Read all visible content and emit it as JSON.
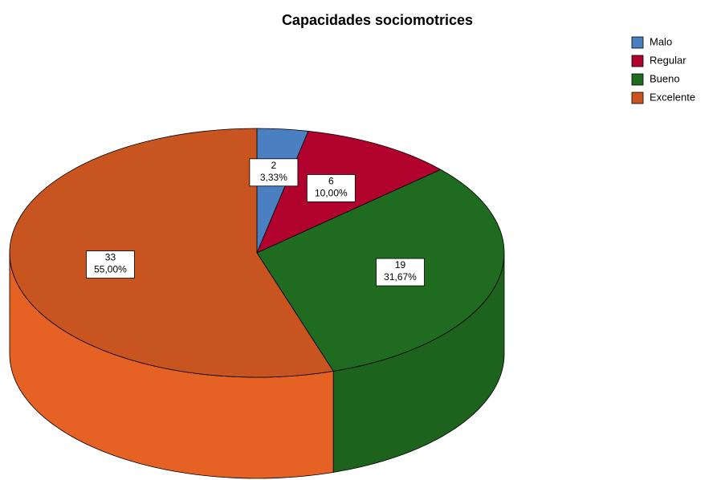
{
  "chart_data": {
    "type": "pie",
    "title": "Capacidades sociomotrices",
    "categories": [
      "Malo",
      "Regular",
      "Bueno",
      "Excelente"
    ],
    "counts": [
      2,
      6,
      19,
      33
    ],
    "values": [
      3.33,
      10,
      31.67,
      55
    ],
    "value_labels": [
      "3,33%",
      "10,00%",
      "31,67%",
      "55,00%"
    ],
    "colors": [
      "#4a7fc1",
      "#b0022c",
      "#1f6b1f",
      "#c8541f"
    ],
    "legend": "top-right"
  }
}
